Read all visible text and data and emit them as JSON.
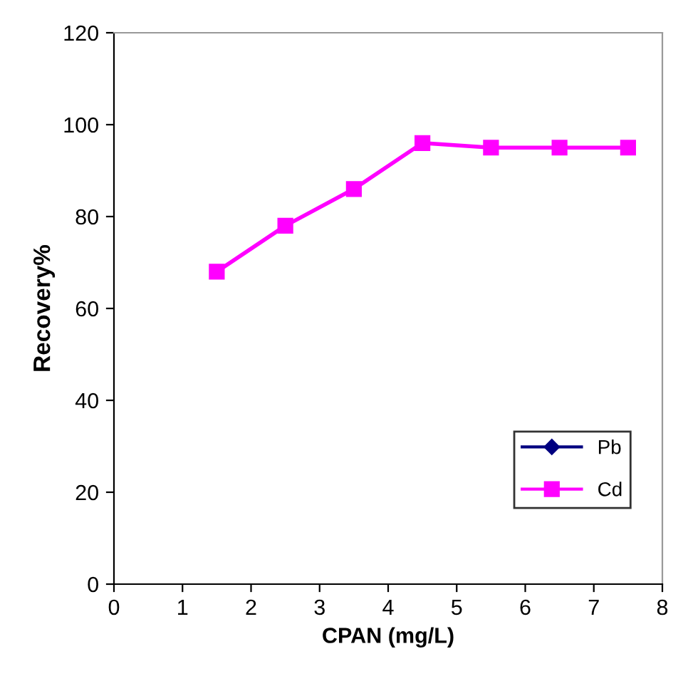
{
  "chart_data": {
    "type": "line",
    "xlabel": "CPAN (mg/L)",
    "ylabel": "Recovery%",
    "x": [
      1.5,
      2.5,
      3.5,
      4.5,
      5.5,
      6.5,
      7.5
    ],
    "series": [
      {
        "name": "Pb",
        "color": "#000080",
        "marker": "diamond",
        "values": [
          null,
          null,
          null,
          null,
          null,
          null,
          null
        ]
      },
      {
        "name": "Cd",
        "color": "#ff00ff",
        "marker": "square",
        "values": [
          68,
          78,
          86,
          96,
          95,
          95,
          95
        ]
      }
    ],
    "xlim": [
      0,
      8
    ],
    "xticks": [
      0,
      1,
      2,
      3,
      4,
      5,
      6,
      7,
      8
    ],
    "ylim": [
      0,
      120
    ],
    "yticks": [
      0,
      20,
      40,
      60,
      80,
      100,
      120
    ],
    "grid": false,
    "legend": "bottom right",
    "line_style": "solid"
  }
}
